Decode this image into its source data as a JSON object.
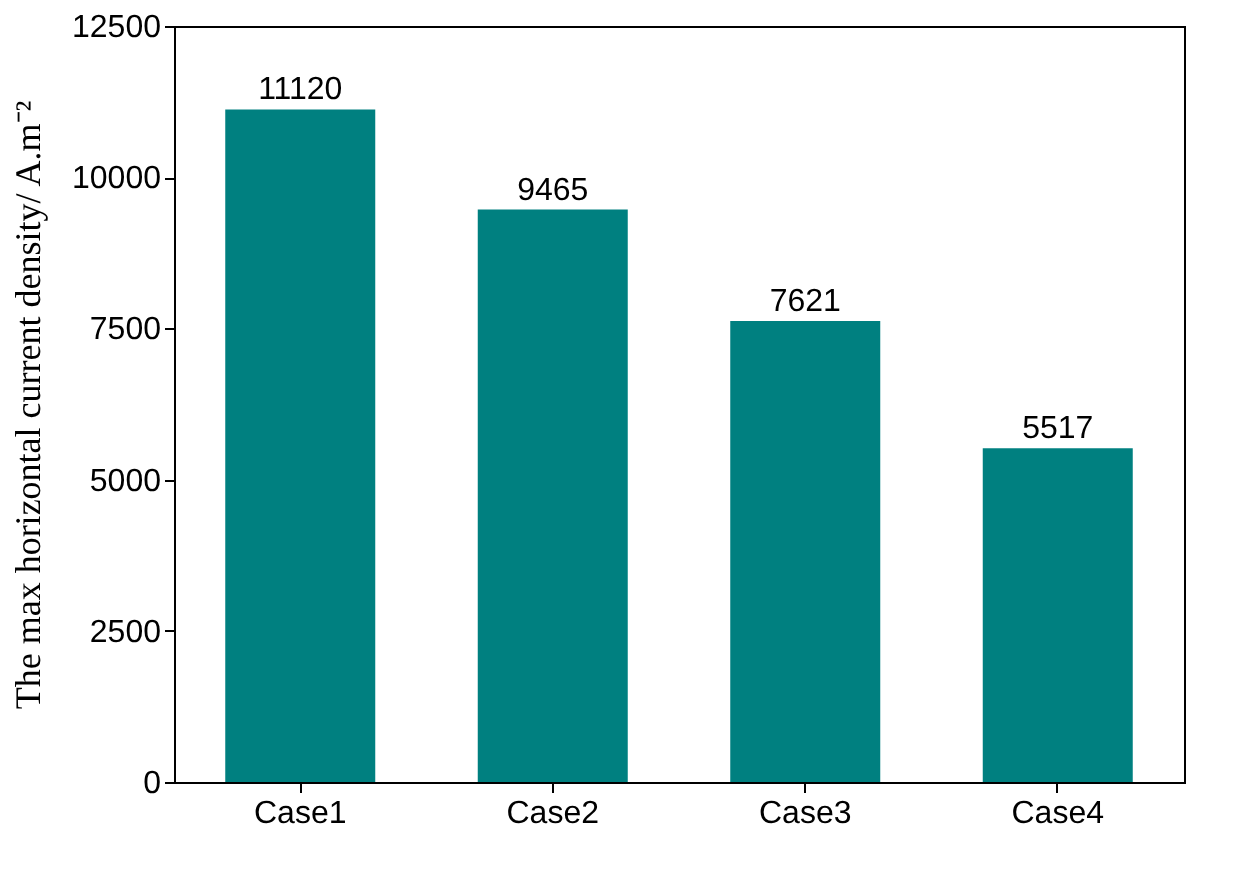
{
  "chart_data": {
    "type": "bar",
    "ylabel": "The max horizontal current density/ A.m⁻²",
    "categories": [
      "Case1",
      "Case2",
      "Case3",
      "Case4"
    ],
    "values": [
      11120,
      9465,
      7621,
      5517
    ],
    "color": "#008080",
    "ylim": [
      0,
      12500
    ],
    "yticks": [
      0,
      2500,
      5000,
      7500,
      10000,
      12500
    ],
    "data_labels": true,
    "grid": false
  }
}
